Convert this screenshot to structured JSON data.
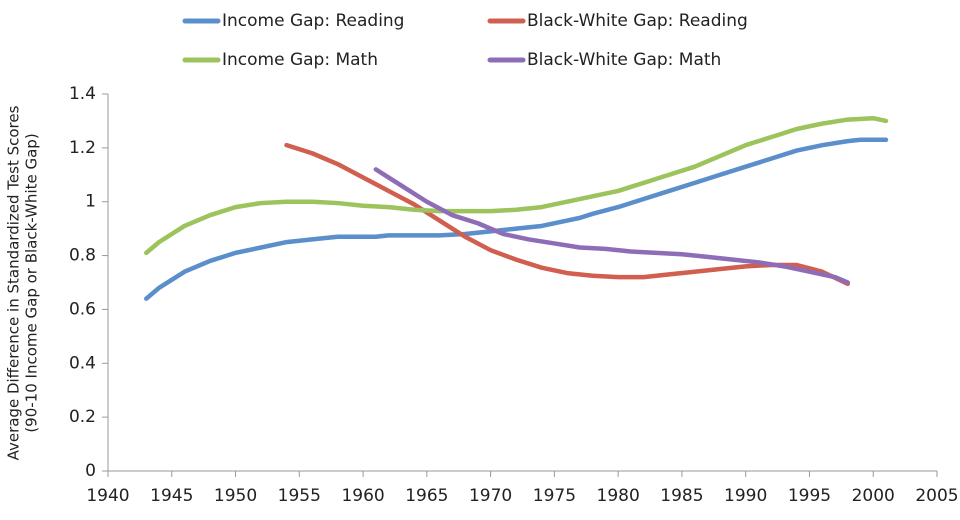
{
  "chart_data": {
    "type": "line",
    "y_label": [
      "Average Difference in Standardized Test Scores",
      "(90-10 Income Gap or Black-White Gap)"
    ],
    "xlim": [
      1940,
      2005
    ],
    "xticks": [
      1940,
      1945,
      1950,
      1955,
      1960,
      1965,
      1970,
      1975,
      1980,
      1985,
      1990,
      1995,
      2000,
      2005
    ],
    "ylim": [
      0,
      1.4
    ],
    "yticks": [
      0,
      0.2,
      0.4,
      0.6,
      0.8,
      1,
      1.2,
      1.4
    ],
    "grid": false,
    "series": [
      {
        "name": "Income Gap: Reading",
        "color": "#5b8fcc",
        "x": [
          1943,
          1944,
          1945,
          1946,
          1948,
          1950,
          1952,
          1954,
          1956,
          1958,
          1961,
          1962,
          1966,
          1968,
          1970,
          1972,
          1974,
          1976,
          1977,
          1978,
          1980,
          1982,
          1984,
          1986,
          1988,
          1990,
          1992,
          1994,
          1996,
          1998,
          1999,
          2001
        ],
        "values": [
          0.64,
          0.68,
          0.71,
          0.74,
          0.78,
          0.81,
          0.83,
          0.85,
          0.86,
          0.87,
          0.87,
          0.875,
          0.875,
          0.88,
          0.89,
          0.9,
          0.91,
          0.93,
          0.94,
          0.955,
          0.98,
          1.01,
          1.04,
          1.07,
          1.1,
          1.13,
          1.16,
          1.19,
          1.21,
          1.225,
          1.23,
          1.23
        ]
      },
      {
        "name": "Black-White Gap: Reading",
        "color": "#d05f50",
        "x": [
          1954,
          1956,
          1958,
          1960,
          1962,
          1964,
          1966,
          1968,
          1970,
          1972,
          1974,
          1976,
          1978,
          1980,
          1982,
          1984,
          1986,
          1988,
          1990,
          1992,
          1994,
          1996,
          1998
        ],
        "values": [
          1.21,
          1.18,
          1.14,
          1.09,
          1.04,
          0.99,
          0.93,
          0.87,
          0.82,
          0.785,
          0.755,
          0.735,
          0.725,
          0.72,
          0.72,
          0.73,
          0.74,
          0.75,
          0.76,
          0.765,
          0.765,
          0.74,
          0.695
        ]
      },
      {
        "name": "Income Gap: Math",
        "color": "#9cc35c",
        "x": [
          1943,
          1944,
          1946,
          1948,
          1950,
          1952,
          1954,
          1956,
          1958,
          1960,
          1962,
          1964,
          1966,
          1968,
          1970,
          1972,
          1974,
          1976,
          1978,
          1980,
          1982,
          1984,
          1986,
          1988,
          1990,
          1992,
          1994,
          1996,
          1998,
          2000,
          2001
        ],
        "values": [
          0.81,
          0.85,
          0.91,
          0.95,
          0.98,
          0.995,
          1.0,
          1.0,
          0.995,
          0.985,
          0.98,
          0.97,
          0.965,
          0.965,
          0.965,
          0.97,
          0.98,
          1.0,
          1.02,
          1.04,
          1.07,
          1.1,
          1.13,
          1.17,
          1.21,
          1.24,
          1.27,
          1.29,
          1.305,
          1.31,
          1.3
        ]
      },
      {
        "name": "Black-White Gap: Math",
        "color": "#8e6db6",
        "x": [
          1961,
          1963,
          1965,
          1967,
          1969,
          1971,
          1973,
          1975,
          1977,
          1979,
          1981,
          1983,
          1985,
          1987,
          1989,
          1991,
          1993,
          1995,
          1997,
          1998
        ],
        "values": [
          1.12,
          1.06,
          1.0,
          0.95,
          0.92,
          0.88,
          0.86,
          0.845,
          0.83,
          0.825,
          0.815,
          0.81,
          0.805,
          0.795,
          0.785,
          0.775,
          0.76,
          0.74,
          0.72,
          0.7
        ]
      }
    ]
  }
}
